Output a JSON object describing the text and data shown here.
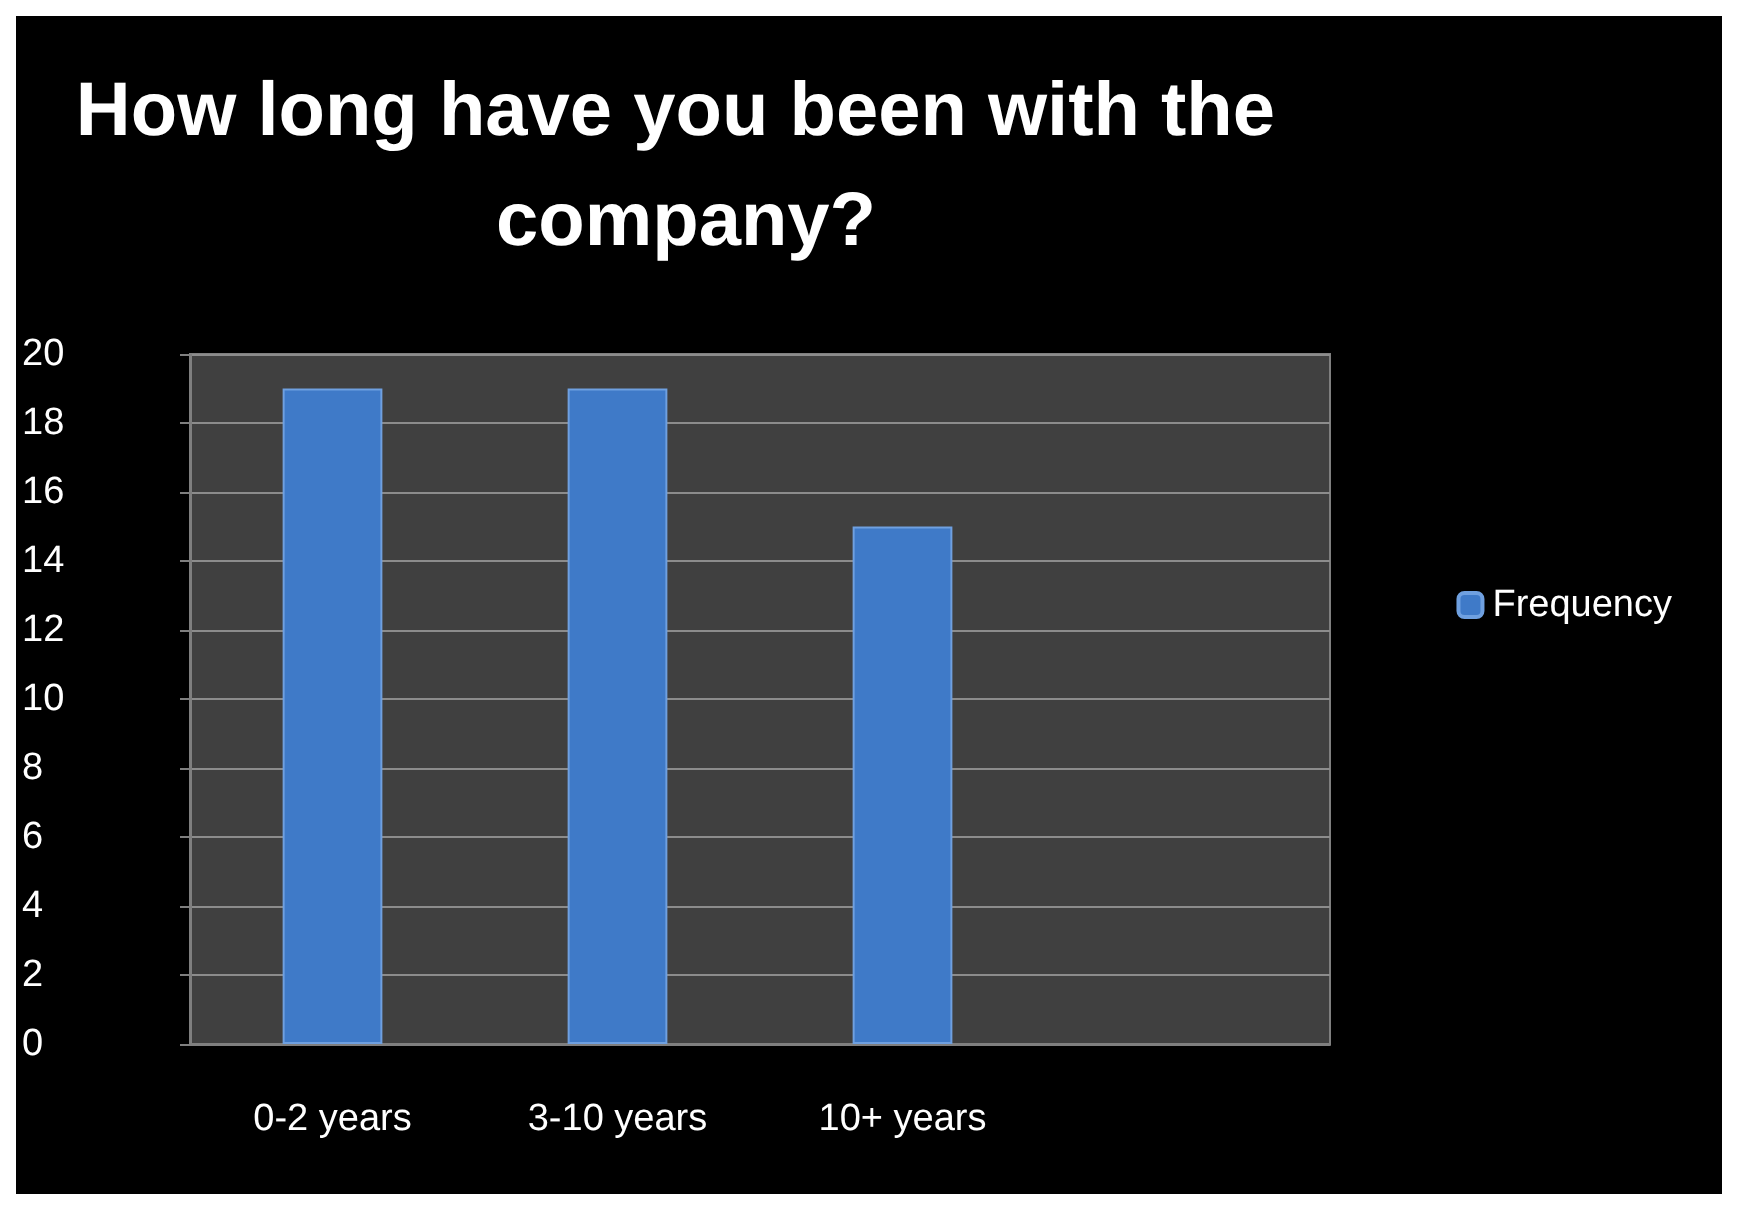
{
  "chart_data": {
    "type": "bar",
    "title": "How long have you been with the company?",
    "categories": [
      "0-2 years",
      "3-10 years",
      "10+ years",
      null
    ],
    "series": [
      {
        "name": "Frequency",
        "color": "#3f7ac8",
        "values": [
          19,
          19,
          15,
          null
        ]
      }
    ],
    "ylim": [
      0,
      20
    ],
    "yticks": [
      0,
      2,
      4,
      6,
      8,
      10,
      12,
      14,
      16,
      18,
      20
    ],
    "grid": "y",
    "legend": "right"
  }
}
